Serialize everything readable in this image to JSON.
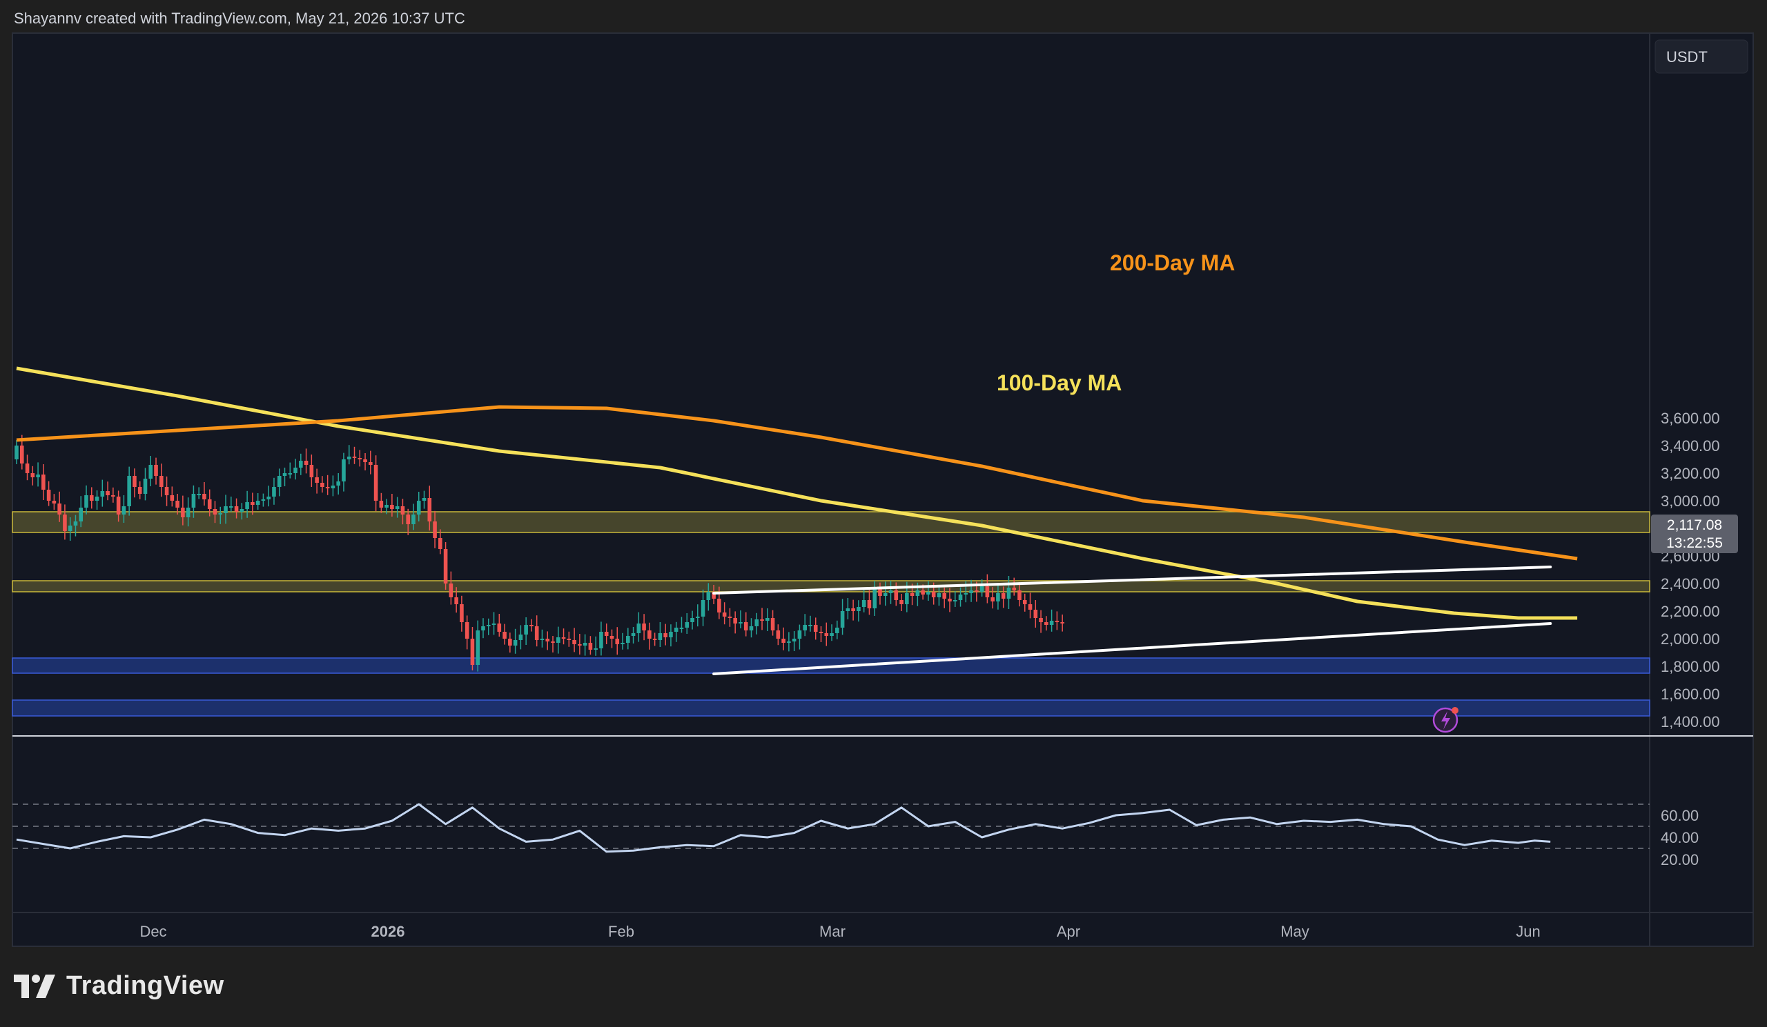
{
  "header": {
    "attribution": "Shayannv created with TradingView.com, May 21, 2026 10:37 UTC"
  },
  "footer": {
    "brand": "TradingView"
  },
  "currency_button": "USDT",
  "price_badge": {
    "price": "2,117.08",
    "countdown": "13:22:55"
  },
  "annotations": {
    "ma200": "200-Day MA",
    "ma100": "100-Day MA"
  },
  "colors": {
    "background": "#131722",
    "up": "#26a69a",
    "down": "#ef5350",
    "ma100": "#f5e15a",
    "ma200": "#f7931a",
    "zone_yellow": "#4d4a2e",
    "zone_blue": "#1f3579",
    "rsi": "#c3d5f0"
  },
  "chart_data": [
    {
      "type": "candlestick",
      "title": "",
      "currency": "USDT",
      "x_axis": {
        "labels": [
          "Dec",
          "2026",
          "Feb",
          "Mar",
          "Apr",
          "May",
          "Jun"
        ]
      },
      "y_axis": {
        "ticks": [
          "3,600.00",
          "3,400.00",
          "3,200.00",
          "3,000.00",
          "2,800.00",
          "2,600.00",
          "2,400.00",
          "2,200.00",
          "2,000.00",
          "1,800.00",
          "1,600.00",
          "1,400.00"
        ],
        "range": [
          1350,
          3900
        ]
      },
      "last_price": 2117.08,
      "moving_averages": [
        {
          "name": "100-Day MA",
          "x": [
            0,
            30,
            60,
            90,
            120,
            150,
            180,
            210,
            235,
            250,
            268,
            280,
            291
          ],
          "y": [
            3960,
            3760,
            3540,
            3360,
            3240,
            3000,
            2820,
            2580,
            2400,
            2270,
            2185,
            2150,
            2150
          ]
        },
        {
          "name": "200-Day MA",
          "x": [
            0,
            30,
            60,
            90,
            110,
            130,
            150,
            180,
            210,
            240,
            270,
            291
          ],
          "y": [
            3440,
            3510,
            3580,
            3680,
            3670,
            3580,
            3460,
            3250,
            3000,
            2880,
            2700,
            2580
          ]
        }
      ],
      "zones": [
        {
          "from": 2770,
          "to": 2920
        },
        {
          "from": 2340,
          "to": 2420
        },
        {
          "from": 1750,
          "to": 1860
        },
        {
          "from": 1440,
          "to": 1555
        }
      ],
      "trendlines": [
        {
          "x": [
            130,
            286
          ],
          "y": [
            2330,
            2520
          ]
        },
        {
          "x": [
            130,
            286
          ],
          "y": [
            1745,
            2110
          ]
        }
      ],
      "closes": [
        3400,
        3270,
        3200,
        3170,
        3190,
        3080,
        3000,
        2980,
        2900,
        2780,
        2820,
        2850,
        2950,
        3040,
        3000,
        3030,
        3070,
        3040,
        3030,
        2900,
        2960,
        3180,
        3100,
        3050,
        3160,
        3260,
        3180,
        3100,
        3040,
        3000,
        2950,
        2880,
        2950,
        3050,
        3050,
        3010,
        2940,
        2900,
        2910,
        2960,
        2960,
        2920,
        2940,
        2990,
        2970,
        3000,
        3010,
        3030,
        3100,
        3180,
        3200,
        3200,
        3240,
        3290,
        3260,
        3170,
        3130,
        3100,
        3090,
        3110,
        3140,
        3300,
        3320,
        3310,
        3300,
        3280,
        3260,
        3000,
        2950,
        2970,
        2940,
        2960,
        2900,
        2830,
        2900,
        3000,
        3020,
        2850,
        2730,
        2650,
        2400,
        2300,
        2250,
        2120,
        2000,
        1810,
        2060,
        2090,
        2100,
        2110,
        2050,
        2000,
        1950,
        1990,
        2030,
        2100,
        2090,
        1990,
        2000,
        1980,
        1970,
        2010,
        2000,
        1990,
        1960,
        1950,
        1970,
        1920,
        1930,
        2050,
        2020,
        2000,
        1960,
        1970,
        2020,
        2040,
        2110,
        2060,
        2000,
        1990,
        2040,
        2010,
        2050,
        2080,
        2080,
        2120,
        2150,
        2160,
        2280,
        2340,
        2290,
        2190,
        2160,
        2150,
        2110,
        2120,
        2060,
        2090,
        2140,
        2130,
        2150,
        2060,
        2000,
        1970,
        1980,
        2000,
        2060,
        2100,
        2100,
        2050,
        2040,
        2020,
        2040,
        2080,
        2200,
        2220,
        2200,
        2230,
        2280,
        2220,
        2360,
        2310,
        2330,
        2350,
        2280,
        2250,
        2330,
        2310,
        2350,
        2320,
        2340,
        2300,
        2330,
        2290,
        2270,
        2280,
        2320,
        2330,
        2350,
        2340,
        2380,
        2300,
        2270,
        2330,
        2290,
        2370,
        2350,
        2280,
        2250,
        2210,
        2150,
        2120,
        2100,
        2130,
        2120,
        2117.08
      ],
      "rsi": {
        "y_axis": {
          "ticks": [
            "60.00",
            "40.00",
            "20.00"
          ],
          "range": [
            10,
            75
          ]
        },
        "levels": [
          70,
          50,
          30
        ],
        "x": [
          0,
          5,
          10,
          15,
          20,
          25,
          30,
          35,
          40,
          45,
          50,
          55,
          60,
          65,
          70,
          75,
          80,
          85,
          90,
          95,
          100,
          105,
          110,
          115,
          120,
          125,
          130,
          135,
          140,
          145,
          150,
          155,
          160,
          165,
          170,
          175,
          180,
          185,
          190,
          195,
          200,
          205,
          210,
          215,
          220,
          225,
          230,
          235,
          240,
          245,
          250,
          255,
          260,
          265,
          270,
          275,
          280,
          283,
          286
        ],
        "values": [
          38,
          34,
          30,
          36,
          41,
          40,
          47,
          56,
          52,
          44,
          42,
          48,
          46,
          48,
          55,
          70,
          52,
          67,
          48,
          36,
          38,
          46,
          27,
          28,
          31,
          33,
          32,
          42,
          40,
          44,
          55,
          48,
          52,
          67,
          50,
          54,
          40,
          47,
          52,
          48,
          53,
          60,
          62,
          65,
          51,
          56,
          58,
          52,
          55,
          54,
          56,
          52,
          50,
          38,
          33,
          37,
          35,
          37,
          36
        ]
      }
    }
  ]
}
